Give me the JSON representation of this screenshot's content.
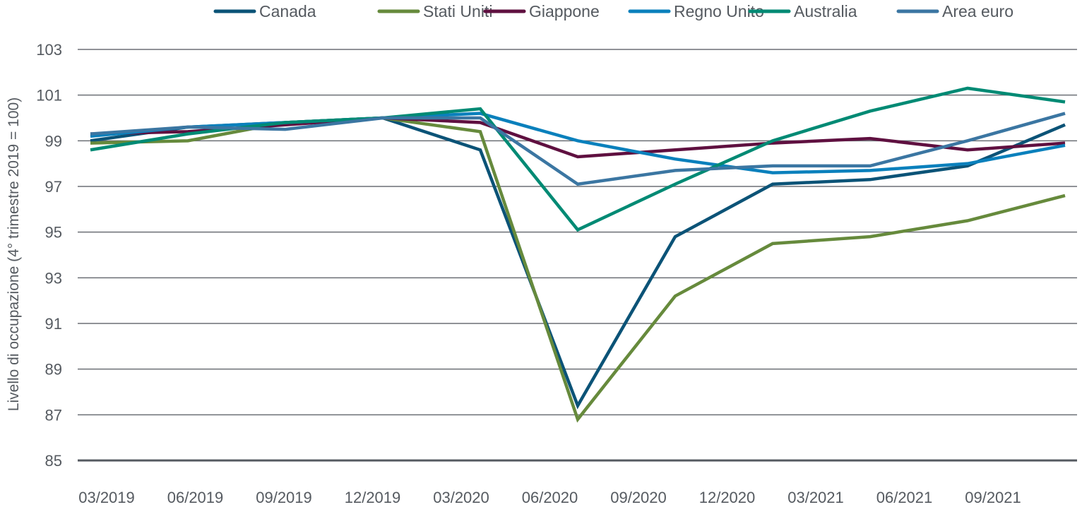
{
  "chart_data": {
    "type": "line",
    "title": "",
    "xlabel": "",
    "ylabel": "Livello di occupazione (4° trimestre 2019 = 100)",
    "ylim": [
      85,
      103
    ],
    "yticks": [
      85,
      87,
      89,
      91,
      93,
      95,
      97,
      99,
      101,
      103
    ],
    "grid": true,
    "legend_position": "top",
    "categories": [
      "03/2019",
      "06/2019",
      "09/2019",
      "12/2019",
      "03/2020",
      "06/2020",
      "09/2020",
      "12/2020",
      "03/2021",
      "06/2021",
      "09/2021"
    ],
    "x_tick_labels": [
      "03/2019",
      "06/2019",
      "09/2019",
      "12/2019",
      "03/2020",
      "06/2020",
      "09/2020",
      "12/2020",
      "03/2021",
      "06/2021",
      "09/2021"
    ],
    "series": [
      {
        "name": "Canada",
        "color": "#0b5377",
        "values": [
          99.0,
          99.6,
          99.8,
          100.0,
          98.6,
          87.4,
          94.8,
          97.1,
          97.3,
          97.9,
          99.7
        ]
      },
      {
        "name": "Stati Uniti",
        "color": "#668a3c",
        "values": [
          98.9,
          99.0,
          99.8,
          100.0,
          99.4,
          86.8,
          92.2,
          94.5,
          94.8,
          95.5,
          96.6
        ]
      },
      {
        "name": "Giappone",
        "color": "#5f1040",
        "values": [
          99.3,
          99.4,
          99.7,
          100.0,
          99.8,
          98.3,
          98.6,
          98.9,
          99.1,
          98.6,
          98.9
        ]
      },
      {
        "name": "Regno Unito",
        "color": "#0a80bc",
        "values": [
          99.2,
          99.6,
          99.8,
          100.0,
          100.2,
          99.0,
          98.2,
          97.6,
          97.7,
          98.0,
          98.8
        ]
      },
      {
        "name": "Australia",
        "color": "#008a74",
        "values": [
          98.6,
          99.3,
          99.8,
          100.0,
          100.4,
          95.1,
          97.1,
          99.0,
          100.3,
          101.3,
          100.7
        ]
      },
      {
        "name": "Area euro",
        "color": "#3b76a2",
        "values": [
          99.3,
          99.6,
          99.5,
          100.0,
          100.0,
          97.1,
          97.7,
          97.9,
          97.9,
          99.0,
          100.2
        ]
      }
    ]
  }
}
